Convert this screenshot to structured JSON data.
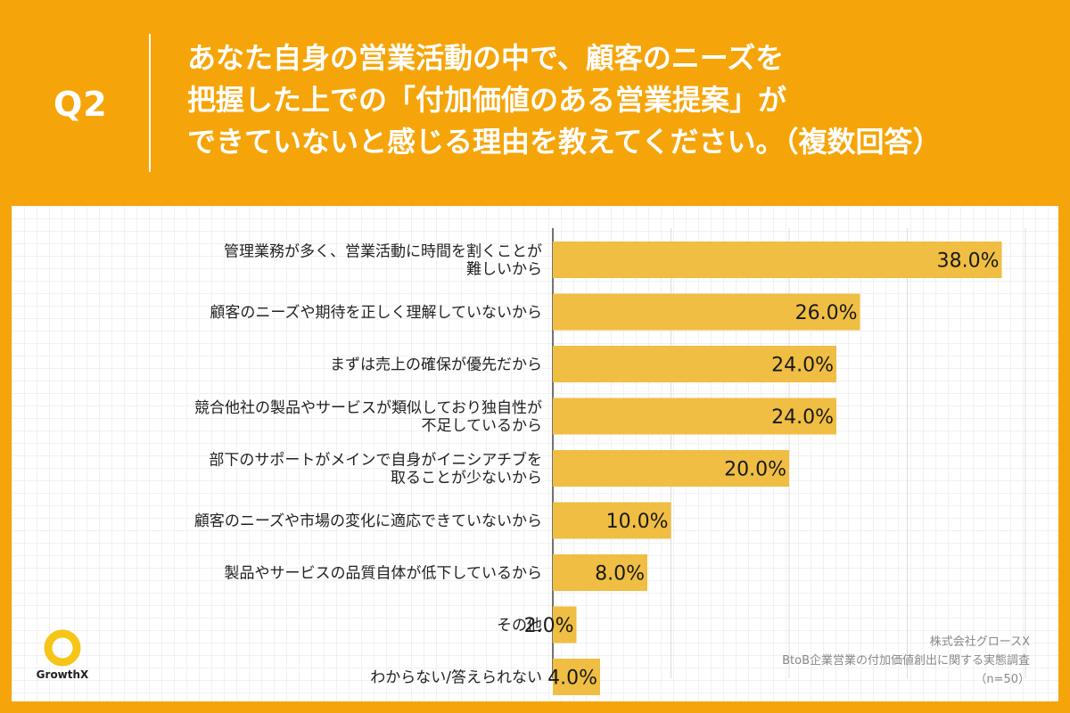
{
  "header": {
    "q_number": "Q2",
    "title_lines": [
      "あなた自身の営業活動の中で、顧客のニーズを",
      "把握した上での「付加価値のある営業提案」が",
      "できていないと感じる理由を教えてください。（複数回答）"
    ]
  },
  "chart_data": {
    "type": "bar",
    "orientation": "horizontal",
    "categories": [
      [
        "管理業務が多く、営業活動に時間を割くことが",
        "難しいから"
      ],
      [
        "顧客のニーズや期待を正しく理解していないから"
      ],
      [
        "まずは売上の確保が優先だから"
      ],
      [
        "競合他社の製品やサービスが類似しており独自性が",
        "不足しているから"
      ],
      [
        "部下のサポートがメインで自身がイニシアチブを",
        "取ることが少ないから"
      ],
      [
        "顧客のニーズや市場の変化に適応できていないから"
      ],
      [
        "製品やサービスの品質自体が低下しているから"
      ],
      [
        "その他"
      ],
      [
        "わからない/答えられない"
      ]
    ],
    "values": [
      38.0,
      26.0,
      24.0,
      24.0,
      20.0,
      10.0,
      8.0,
      2.0,
      4.0
    ],
    "value_labels": [
      "38.0%",
      "26.0%",
      "24.0%",
      "24.0%",
      "20.0%",
      "10.0%",
      "8.0%",
      "2.0%",
      "4.0%"
    ],
    "xlim": [
      0,
      40
    ],
    "grid": true,
    "bar_color": "#EFBE42"
  },
  "logo": {
    "name": "GrowthX",
    "icon": "hexagon-ring-icon",
    "color": "#F5C518"
  },
  "footnote": {
    "company": "株式会社グロースX",
    "survey": "BtoB企業営業の付加価値創出に関する実態調査",
    "sample": "（n=50）"
  },
  "colors": {
    "background": "#F5A50A",
    "panel": "#FFFFFF"
  }
}
